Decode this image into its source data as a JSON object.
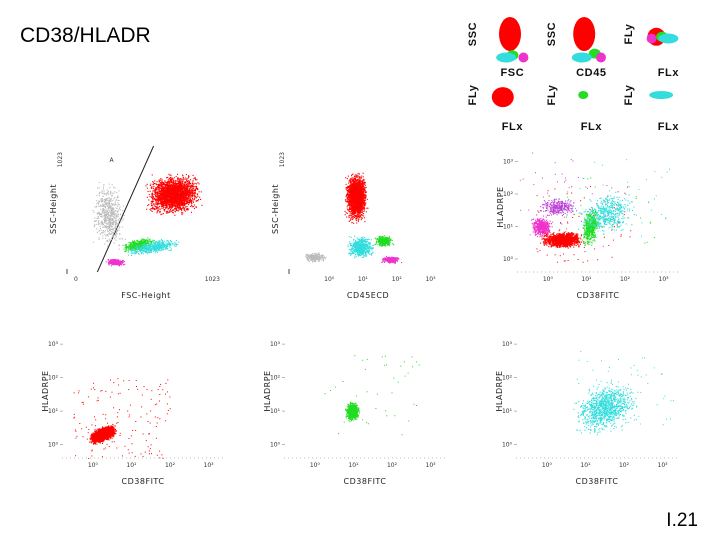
{
  "slide": {
    "title": "CD38/HLADR",
    "number": "I.21"
  },
  "colors": {
    "red": "#ff0000",
    "green": "#22dd22",
    "cyan": "#33dddd",
    "magenta": "#ee33cc",
    "gray": "#bbbbbb",
    "purple": "#bb44dd"
  },
  "chart_data": [
    {
      "type": "scatter",
      "id": "mini-ssc-fsc",
      "xlabel": "FSC",
      "ylabel": "SSC",
      "populations": [
        {
          "name": "",
          "color": "red",
          "cx": 0.5,
          "cy": 0.5
        },
        {
          "name": "",
          "color": "green",
          "cx": 0.55,
          "cy": 0.12
        },
        {
          "name": "",
          "color": "cyan",
          "cx": 0.42,
          "cy": 0.08
        },
        {
          "name": "",
          "color": "magenta",
          "cx": 0.78,
          "cy": 0.08
        }
      ]
    },
    {
      "type": "scatter",
      "id": "mini-ssc-cd45",
      "xlabel": "CD45",
      "ylabel": "SSC",
      "populations": [
        {
          "name": "",
          "color": "red",
          "cx": 0.4,
          "cy": 0.5
        },
        {
          "name": "",
          "color": "green",
          "cx": 0.62,
          "cy": 0.15
        },
        {
          "name": "",
          "color": "cyan",
          "cx": 0.35,
          "cy": 0.08
        },
        {
          "name": "",
          "color": "magenta",
          "cx": 0.75,
          "cy": 0.08
        }
      ]
    },
    {
      "type": "scatter",
      "id": "mini-fly-flx-1",
      "xlabel": "FLx",
      "ylabel": "FLy",
      "populations": [
        {
          "name": "",
          "color": "red",
          "cx": 0.3,
          "cy": 0.45
        },
        {
          "name": "",
          "color": "green",
          "cx": 0.42,
          "cy": 0.45
        },
        {
          "name": "",
          "color": "cyan",
          "cx": 0.55,
          "cy": 0.42
        },
        {
          "name": "",
          "color": "magenta",
          "cx": 0.2,
          "cy": 0.42
        }
      ]
    },
    {
      "type": "scatter",
      "id": "mini-fly-flx-red",
      "xlabel": "FLx",
      "ylabel": "FLy",
      "populations": [
        {
          "name": "",
          "color": "red",
          "cx": 0.35,
          "cy": 0.45
        }
      ]
    },
    {
      "type": "scatter",
      "id": "mini-fly-flx-green",
      "xlabel": "FLx",
      "ylabel": "FLy",
      "populations": [
        {
          "name": "",
          "color": "green",
          "cx": 0.38,
          "cy": 0.5
        }
      ]
    },
    {
      "type": "scatter",
      "id": "mini-fly-flx-cyan",
      "xlabel": "FLx",
      "ylabel": "FLy",
      "populations": [
        {
          "name": "",
          "color": "cyan",
          "cx": 0.4,
          "cy": 0.5
        }
      ]
    },
    {
      "type": "scatter",
      "id": "ssc-fsc",
      "xlabel": "FSC-Height",
      "ylabel": "SSC-Height",
      "xlim": [
        0,
        1023
      ],
      "ylim": [
        0,
        1023
      ],
      "xticks": [
        "0",
        "1023"
      ],
      "yticks": [
        "1023"
      ],
      "gate": "A",
      "populations": [
        {
          "name": "",
          "color": "gray",
          "cx": 0.25,
          "cy": 0.45
        },
        {
          "name": "",
          "color": "red",
          "cx": 0.68,
          "cy": 0.62
        },
        {
          "name": "",
          "color": "green",
          "cx": 0.45,
          "cy": 0.22
        },
        {
          "name": "",
          "color": "cyan",
          "cx": 0.55,
          "cy": 0.2
        },
        {
          "name": "",
          "color": "magenta",
          "cx": 0.3,
          "cy": 0.08
        }
      ]
    },
    {
      "type": "scatter",
      "id": "ssc-cd45",
      "xlabel": "CD45ECD",
      "ylabel": "SSC-Height",
      "xscale": "log",
      "xlim": [
        0.1,
        1000
      ],
      "ylim": [
        0,
        1023
      ],
      "xticks": [
        "10⁰",
        "10¹",
        "10²",
        "10³"
      ],
      "yticks": [
        "1023"
      ],
      "populations": [
        {
          "name": "",
          "color": "red",
          "cx": 0.42,
          "cy": 0.6
        },
        {
          "name": "",
          "color": "gray",
          "cx": 0.15,
          "cy": 0.12
        },
        {
          "name": "",
          "color": "cyan",
          "cx": 0.45,
          "cy": 0.2
        },
        {
          "name": "",
          "color": "green",
          "cx": 0.6,
          "cy": 0.25
        },
        {
          "name": "",
          "color": "magenta",
          "cx": 0.65,
          "cy": 0.1
        }
      ]
    },
    {
      "type": "scatter",
      "id": "hladr-cd38-all",
      "xlabel": "CD38FITC",
      "ylabel": "HLADRPE",
      "xscale": "log",
      "yscale": "log",
      "xlim": [
        0.1,
        10000
      ],
      "ylim": [
        0.1,
        1000
      ],
      "xticks": [
        "10⁰",
        "10¹",
        "10²",
        "10³"
      ],
      "yticks": [
        "10⁰",
        "10¹",
        "10²",
        "10³"
      ],
      "populations": [
        {
          "name": "",
          "color": "magenta",
          "cx": 0.15,
          "cy": 0.35
        },
        {
          "name": "",
          "color": "purple",
          "cx": 0.25,
          "cy": 0.5
        },
        {
          "name": "",
          "color": "red",
          "cx": 0.28,
          "cy": 0.25
        },
        {
          "name": "",
          "color": "green",
          "cx": 0.45,
          "cy": 0.35
        },
        {
          "name": "",
          "color": "cyan",
          "cx": 0.55,
          "cy": 0.45
        }
      ]
    },
    {
      "type": "scatter",
      "id": "hladr-cd38-red",
      "xlabel": "CD38FITC",
      "ylabel": "HLADRPE",
      "xscale": "log",
      "yscale": "log",
      "xlim": [
        0.1,
        10000
      ],
      "ylim": [
        0.1,
        1000
      ],
      "xticks": [
        "10⁰",
        "10¹",
        "10²",
        "10³"
      ],
      "yticks": [
        "10⁰",
        "10¹",
        "10²",
        "10³"
      ],
      "populations": [
        {
          "name": "",
          "color": "red",
          "cx": 0.25,
          "cy": 0.18
        }
      ]
    },
    {
      "type": "scatter",
      "id": "hladr-cd38-green",
      "xlabel": "CD38FITC",
      "ylabel": "HLADRPE",
      "xscale": "log",
      "yscale": "log",
      "xlim": [
        0.1,
        10000
      ],
      "ylim": [
        0.1,
        1000
      ],
      "xticks": [
        "10⁰",
        "10¹",
        "10²",
        "10³"
      ],
      "yticks": [
        "10⁰",
        "10¹",
        "10²",
        "10³"
      ],
      "populations": [
        {
          "name": "",
          "color": "green",
          "cx": 0.42,
          "cy": 0.35
        }
      ]
    },
    {
      "type": "scatter",
      "id": "hladr-cd38-cyan",
      "xlabel": "CD38FITC",
      "ylabel": "HLADRPE",
      "xscale": "log",
      "yscale": "log",
      "xlim": [
        0.1,
        10000
      ],
      "ylim": [
        0.1,
        1000
      ],
      "xticks": [
        "10⁰",
        "10¹",
        "10²",
        "10³"
      ],
      "yticks": [
        "10⁰",
        "10¹",
        "10²",
        "10³"
      ],
      "populations": [
        {
          "name": "",
          "color": "cyan",
          "cx": 0.55,
          "cy": 0.38
        }
      ]
    }
  ]
}
